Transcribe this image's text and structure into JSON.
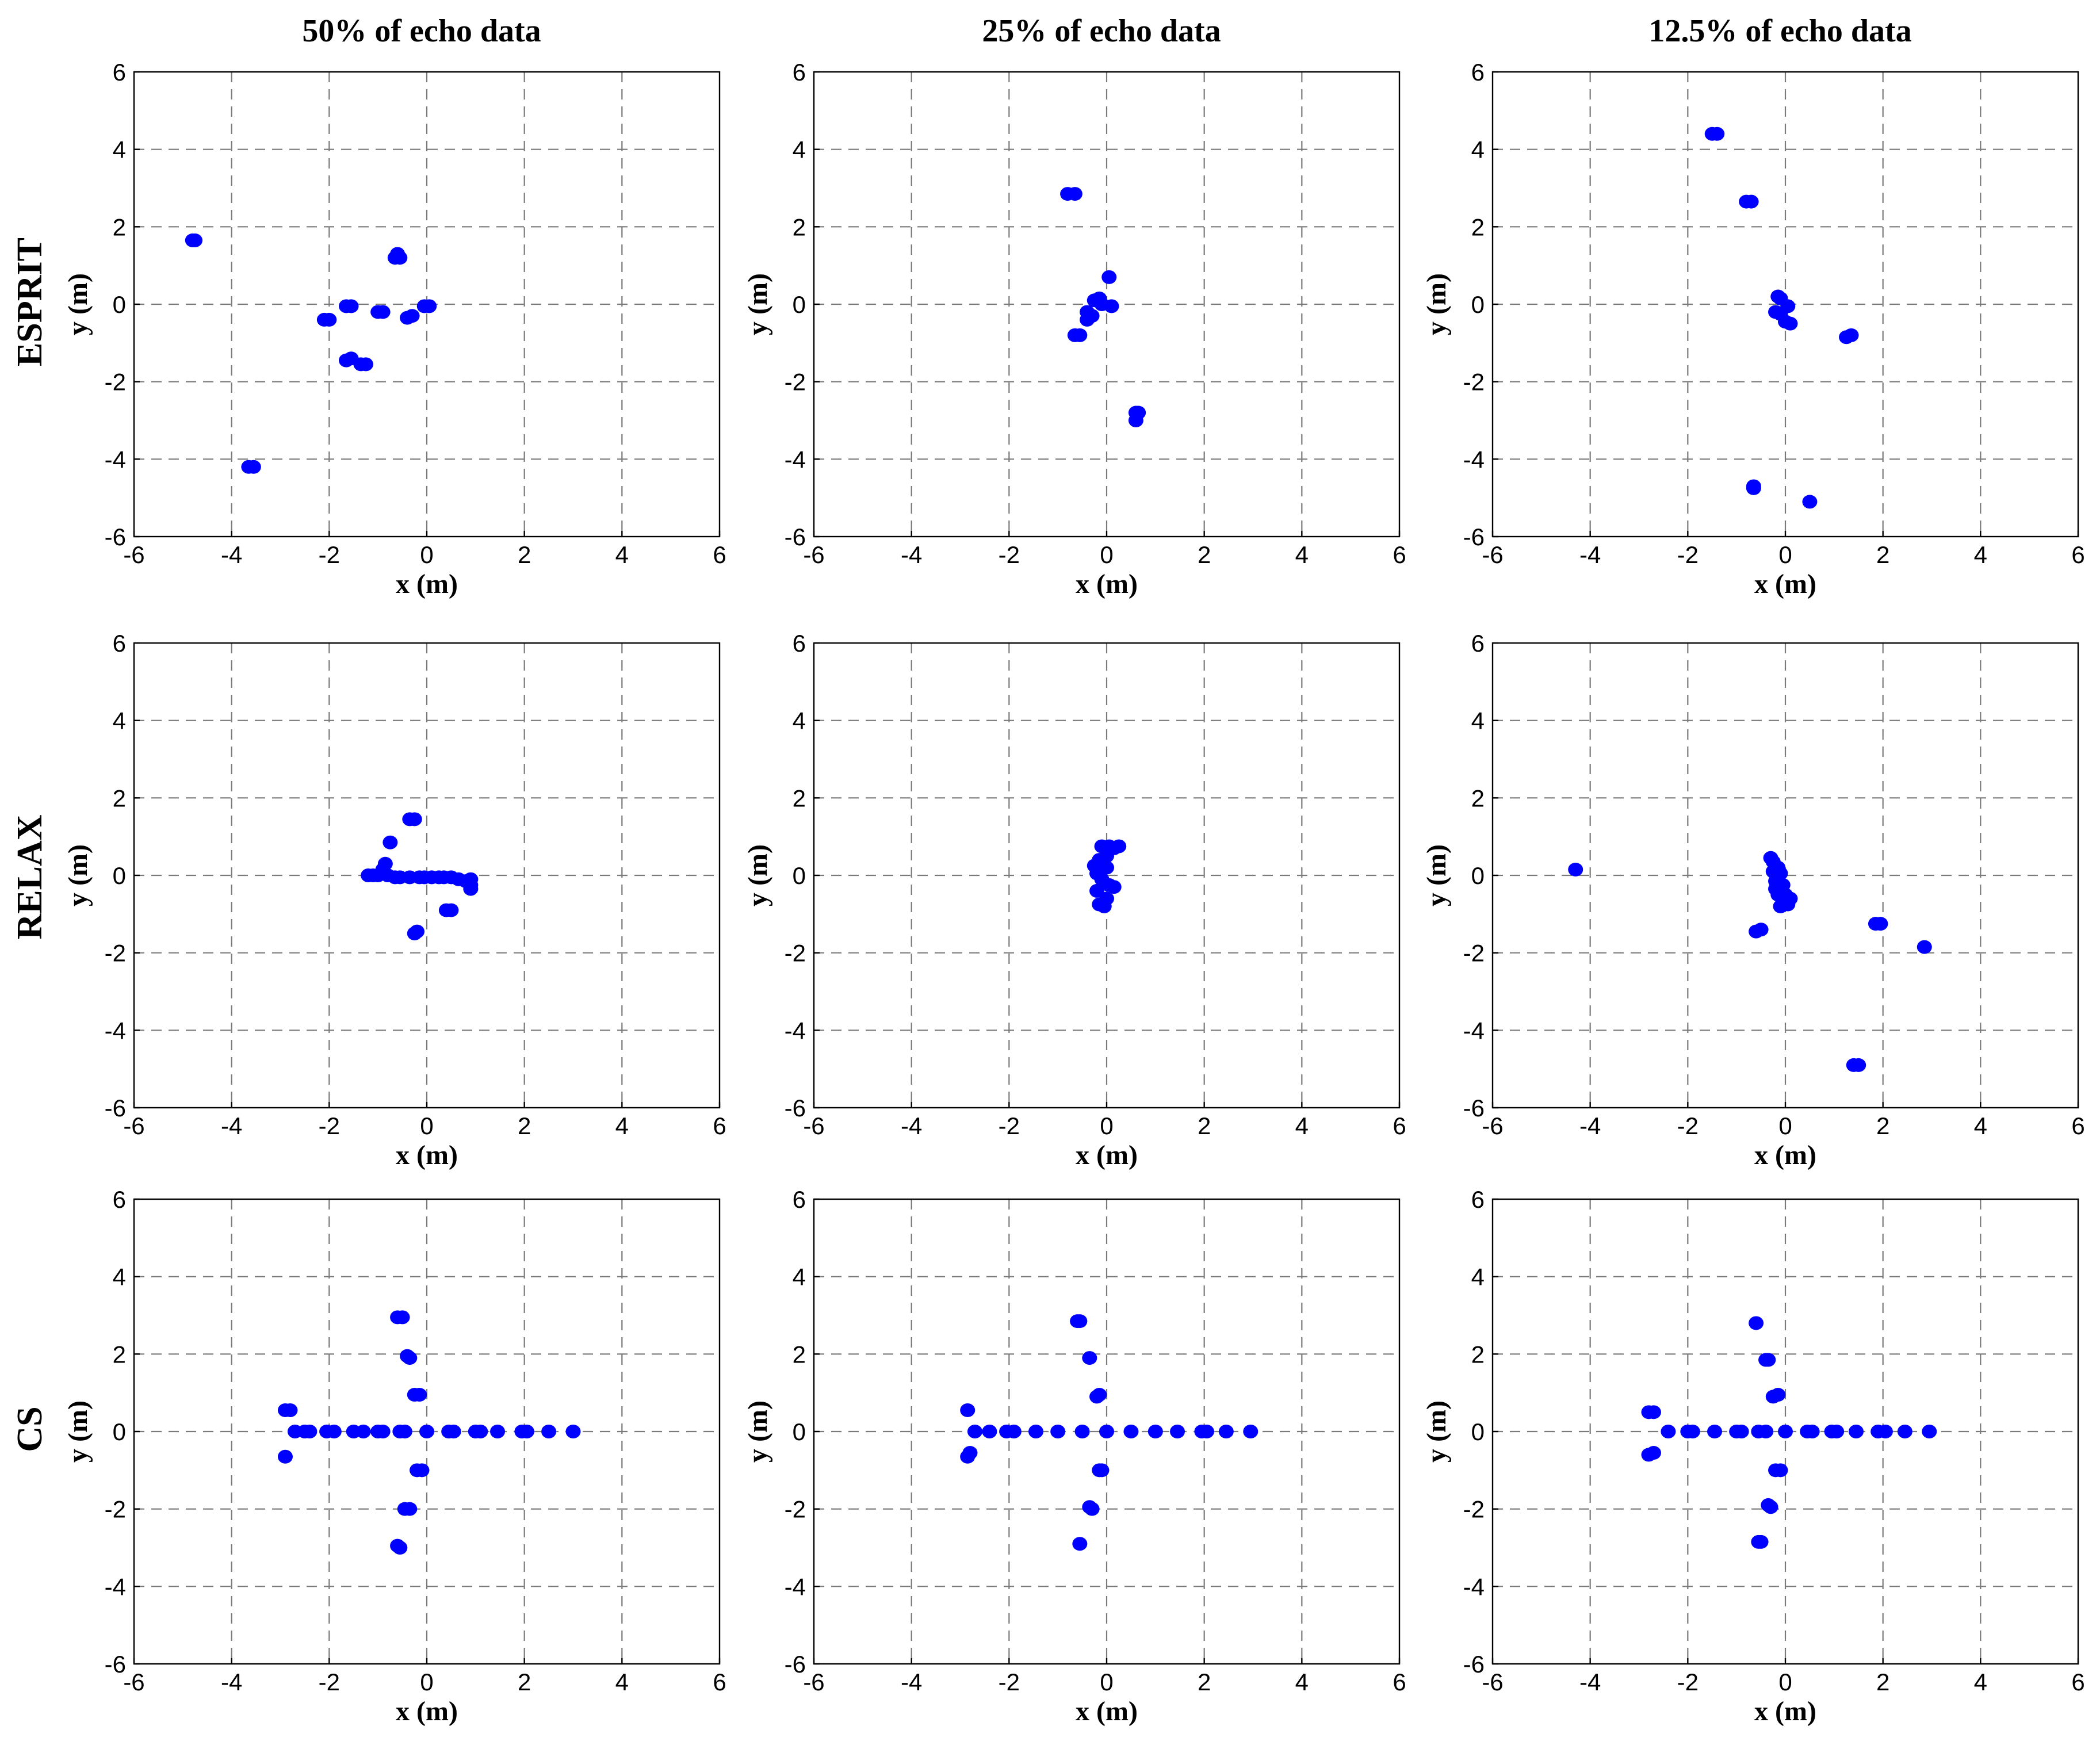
{
  "chart_data": {
    "type": "scatter",
    "column_titles": [
      "50% of echo data",
      "25% of echo data",
      "12.5% of echo data"
    ],
    "row_labels": [
      "ESPRIT",
      "RELAX",
      "CS"
    ],
    "xlabel": "x (m)",
    "ylabel": "y (m)",
    "xlim": [
      -6,
      6
    ],
    "ylim": [
      -6,
      6
    ],
    "ticks": [
      -6,
      -4,
      -2,
      0,
      2,
      4,
      6
    ],
    "tick_labels": [
      "-6",
      "-4",
      "-2",
      "0",
      "2",
      "4",
      "6"
    ],
    "grid": true,
    "point_color": "#0000ff",
    "panels": [
      {
        "method": "ESPRIT",
        "data_fraction": "50% of echo data",
        "points": [
          [
            -4.8,
            1.65
          ],
          [
            -4.75,
            1.65
          ],
          [
            -3.65,
            -4.2
          ],
          [
            -3.55,
            -4.2
          ],
          [
            -2.1,
            -0.4
          ],
          [
            -2.0,
            -0.4
          ],
          [
            -1.65,
            -0.05
          ],
          [
            -1.55,
            -0.05
          ],
          [
            -1.65,
            -1.45
          ],
          [
            -1.55,
            -1.4
          ],
          [
            -1.35,
            -1.55
          ],
          [
            -1.25,
            -1.55
          ],
          [
            -1.0,
            -0.2
          ],
          [
            -0.9,
            -0.2
          ],
          [
            -0.65,
            1.2
          ],
          [
            -0.6,
            1.3
          ],
          [
            -0.55,
            1.2
          ],
          [
            -0.4,
            -0.35
          ],
          [
            -0.3,
            -0.3
          ],
          [
            -0.05,
            -0.05
          ],
          [
            0.05,
            -0.05
          ]
        ]
      },
      {
        "method": "ESPRIT",
        "data_fraction": "25% of echo data",
        "points": [
          [
            -0.8,
            2.85
          ],
          [
            -0.65,
            2.85
          ],
          [
            -0.65,
            -0.8
          ],
          [
            -0.55,
            -0.8
          ],
          [
            -0.4,
            -0.2
          ],
          [
            -0.4,
            -0.4
          ],
          [
            -0.3,
            -0.3
          ],
          [
            -0.25,
            0.1
          ],
          [
            -0.15,
            0.15
          ],
          [
            -0.1,
            0.0
          ],
          [
            0.05,
            0.7
          ],
          [
            0.1,
            -0.05
          ],
          [
            0.6,
            -2.8
          ],
          [
            0.6,
            -3.0
          ],
          [
            0.65,
            -2.8
          ]
        ]
      },
      {
        "method": "ESPRIT",
        "data_fraction": "12.5% of echo data",
        "points": [
          [
            -1.5,
            4.4
          ],
          [
            -1.4,
            4.4
          ],
          [
            -0.8,
            2.65
          ],
          [
            -0.7,
            2.65
          ],
          [
            -0.65,
            -4.7
          ],
          [
            -0.65,
            -4.75
          ],
          [
            -0.15,
            0.2
          ],
          [
            -0.1,
            0.15
          ],
          [
            -0.2,
            -0.2
          ],
          [
            -0.1,
            -0.25
          ],
          [
            0.05,
            -0.05
          ],
          [
            0.0,
            -0.45
          ],
          [
            0.1,
            -0.5
          ],
          [
            0.5,
            -5.1
          ],
          [
            1.25,
            -0.85
          ],
          [
            1.35,
            -0.8
          ]
        ]
      },
      {
        "method": "RELAX",
        "data_fraction": "50% of echo data",
        "points": [
          [
            -1.2,
            0.0
          ],
          [
            -1.1,
            0.0
          ],
          [
            -1.0,
            0.0
          ],
          [
            -0.9,
            0.15
          ],
          [
            -0.85,
            0.3
          ],
          [
            -0.8,
            0.0
          ],
          [
            -0.75,
            0.85
          ],
          [
            -0.65,
            -0.05
          ],
          [
            -0.55,
            -0.05
          ],
          [
            -0.35,
            1.45
          ],
          [
            -0.25,
            1.45
          ],
          [
            -0.25,
            -1.5
          ],
          [
            -0.2,
            -1.45
          ],
          [
            -0.35,
            -0.05
          ],
          [
            -0.15,
            -0.05
          ],
          [
            -0.05,
            -0.05
          ],
          [
            0.1,
            -0.05
          ],
          [
            0.25,
            -0.05
          ],
          [
            0.35,
            -0.05
          ],
          [
            0.4,
            -0.9
          ],
          [
            0.5,
            -0.9
          ],
          [
            0.5,
            -0.05
          ],
          [
            0.65,
            -0.1
          ],
          [
            0.8,
            -0.15
          ],
          [
            0.9,
            -0.1
          ],
          [
            0.9,
            -0.25
          ],
          [
            0.9,
            -0.35
          ]
        ]
      },
      {
        "method": "RELAX",
        "data_fraction": "25% of echo data",
        "points": [
          [
            -0.25,
            0.25
          ],
          [
            -0.2,
            0.05
          ],
          [
            -0.2,
            -0.4
          ],
          [
            -0.15,
            0.4
          ],
          [
            -0.1,
            0.75
          ],
          [
            -0.1,
            -0.1
          ],
          [
            -0.15,
            -0.75
          ],
          [
            -0.05,
            -0.8
          ],
          [
            0.0,
            0.2
          ],
          [
            0.0,
            0.5
          ],
          [
            0.0,
            -0.6
          ],
          [
            0.05,
            -0.25
          ],
          [
            0.05,
            0.75
          ],
          [
            0.15,
            0.7
          ],
          [
            0.15,
            -0.3
          ],
          [
            0.25,
            0.75
          ]
        ]
      },
      {
        "method": "RELAX",
        "data_fraction": "12.5% of echo data",
        "points": [
          [
            -4.3,
            0.15
          ],
          [
            -0.6,
            -1.45
          ],
          [
            -0.5,
            -1.4
          ],
          [
            -0.3,
            0.45
          ],
          [
            -0.25,
            0.35
          ],
          [
            -0.25,
            0.1
          ],
          [
            -0.2,
            -0.15
          ],
          [
            -0.2,
            -0.35
          ],
          [
            -0.15,
            0.2
          ],
          [
            -0.15,
            -0.5
          ],
          [
            -0.1,
            -0.8
          ],
          [
            -0.1,
            0.05
          ],
          [
            -0.05,
            -0.25
          ],
          [
            0.0,
            -0.5
          ],
          [
            0.05,
            -0.75
          ],
          [
            0.1,
            -0.6
          ],
          [
            1.85,
            -1.25
          ],
          [
            1.95,
            -1.25
          ],
          [
            2.85,
            -1.85
          ],
          [
            1.4,
            -4.9
          ],
          [
            1.5,
            -4.9
          ]
        ]
      },
      {
        "method": "CS",
        "data_fraction": "50% of echo data",
        "points": [
          [
            -2.9,
            0.55
          ],
          [
            -2.8,
            0.55
          ],
          [
            -2.9,
            -0.65
          ],
          [
            -2.7,
            0.0
          ],
          [
            -2.5,
            0.0
          ],
          [
            -2.4,
            0.0
          ],
          [
            -2.05,
            0.0
          ],
          [
            -1.9,
            0.0
          ],
          [
            -1.5,
            0.0
          ],
          [
            -1.3,
            0.0
          ],
          [
            -1.0,
            0.0
          ],
          [
            -0.9,
            0.0
          ],
          [
            -0.55,
            0.0
          ],
          [
            -0.45,
            0.0
          ],
          [
            -0.6,
            2.95
          ],
          [
            -0.5,
            2.95
          ],
          [
            -0.4,
            1.95
          ],
          [
            -0.35,
            1.9
          ],
          [
            -0.25,
            0.95
          ],
          [
            -0.15,
            0.95
          ],
          [
            -0.2,
            -1.0
          ],
          [
            -0.1,
            -1.0
          ],
          [
            -0.45,
            -2.0
          ],
          [
            -0.35,
            -2.0
          ],
          [
            -0.6,
            -2.95
          ],
          [
            -0.55,
            -3.0
          ],
          [
            0.0,
            0.0
          ],
          [
            0.45,
            0.0
          ],
          [
            0.55,
            0.0
          ],
          [
            1.0,
            0.0
          ],
          [
            1.1,
            0.0
          ],
          [
            1.45,
            0.0
          ],
          [
            1.95,
            0.0
          ],
          [
            2.05,
            0.0
          ],
          [
            2.5,
            0.0
          ],
          [
            3.0,
            0.0
          ]
        ]
      },
      {
        "method": "CS",
        "data_fraction": "25% of echo data",
        "points": [
          [
            -2.85,
            0.55
          ],
          [
            -2.85,
            -0.65
          ],
          [
            -2.8,
            -0.55
          ],
          [
            -2.7,
            0.0
          ],
          [
            -2.4,
            0.0
          ],
          [
            -2.05,
            0.0
          ],
          [
            -1.9,
            0.0
          ],
          [
            -1.45,
            0.0
          ],
          [
            -1.0,
            0.0
          ],
          [
            -0.6,
            2.85
          ],
          [
            -0.55,
            2.85
          ],
          [
            -0.5,
            0.0
          ],
          [
            -0.35,
            1.9
          ],
          [
            -0.35,
            -1.95
          ],
          [
            -0.3,
            -2.0
          ],
          [
            -0.2,
            0.9
          ],
          [
            -0.15,
            0.95
          ],
          [
            -0.15,
            -1.0
          ],
          [
            -0.1,
            -1.0
          ],
          [
            -0.55,
            -2.9
          ],
          [
            0.0,
            0.0
          ],
          [
            0.5,
            0.0
          ],
          [
            1.0,
            0.0
          ],
          [
            1.45,
            0.0
          ],
          [
            1.95,
            0.0
          ],
          [
            2.05,
            0.0
          ],
          [
            2.45,
            0.0
          ],
          [
            2.95,
            0.0
          ]
        ]
      },
      {
        "method": "CS",
        "data_fraction": "12.5% of echo data",
        "points": [
          [
            -2.8,
            0.5
          ],
          [
            -2.7,
            0.5
          ],
          [
            -2.8,
            -0.6
          ],
          [
            -2.7,
            -0.55
          ],
          [
            -2.4,
            0.0
          ],
          [
            -2.0,
            0.0
          ],
          [
            -1.9,
            0.0
          ],
          [
            -1.45,
            0.0
          ],
          [
            -1.0,
            0.0
          ],
          [
            -0.9,
            0.0
          ],
          [
            -0.6,
            2.8
          ],
          [
            -0.55,
            0.0
          ],
          [
            -0.4,
            0.0
          ],
          [
            -0.4,
            1.85
          ],
          [
            -0.35,
            1.85
          ],
          [
            -0.35,
            -1.9
          ],
          [
            -0.3,
            -1.95
          ],
          [
            -0.25,
            0.9
          ],
          [
            -0.15,
            0.95
          ],
          [
            -0.2,
            -1.0
          ],
          [
            -0.1,
            -1.0
          ],
          [
            -0.55,
            -2.85
          ],
          [
            -0.5,
            -2.85
          ],
          [
            0.0,
            0.0
          ],
          [
            0.45,
            0.0
          ],
          [
            0.55,
            0.0
          ],
          [
            0.95,
            0.0
          ],
          [
            1.05,
            0.0
          ],
          [
            1.45,
            0.0
          ],
          [
            1.9,
            0.0
          ],
          [
            2.05,
            0.0
          ],
          [
            2.45,
            0.0
          ],
          [
            2.95,
            0.0
          ]
        ]
      }
    ]
  }
}
